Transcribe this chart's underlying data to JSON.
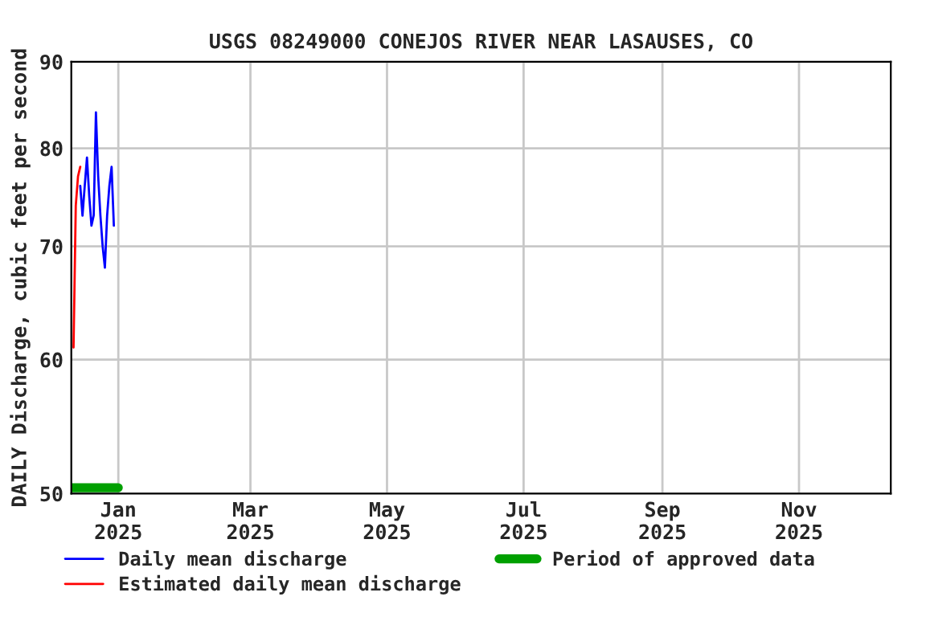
{
  "chart_data": {
    "type": "line",
    "title": "USGS 08249000 CONEJOS RIVER NEAR LASAUSES, CO",
    "ylabel": "DAILY Discharge, cubic feet per second",
    "series": [
      {
        "name": "Daily mean discharge",
        "color": "#0000ff",
        "x": [
          "2024-12-15",
          "2024-12-16",
          "2024-12-17",
          "2024-12-18",
          "2024-12-19",
          "2024-12-20",
          "2024-12-21",
          "2024-12-22",
          "2024-12-23",
          "2024-12-24",
          "2024-12-25",
          "2024-12-26",
          "2024-12-27",
          "2024-12-28",
          "2024-12-29",
          "2024-12-30"
        ],
        "values": [
          76,
          73,
          76,
          79,
          75,
          72,
          73,
          84,
          77,
          73,
          70,
          68,
          73,
          76,
          78,
          72
        ]
      },
      {
        "name": "Estimated daily mean discharge",
        "color": "#ff0000",
        "x": [
          "2024-12-12",
          "2024-12-13",
          "2024-12-14",
          "2024-12-15"
        ],
        "values": [
          61,
          74,
          77,
          78
        ]
      },
      {
        "name": "Period of approved data",
        "type": "step",
        "color": "#00a000",
        "x": [
          "2024-12-11",
          "2025-01-01"
        ],
        "values": [
          50.4,
          50.4
        ]
      }
    ],
    "log": "y",
    "xlim": [
      "2024-12-11",
      "2025-12-12"
    ],
    "ylim": [
      50,
      90
    ],
    "xticks": [
      {
        "value": "2025-01-01",
        "label": "Jan\n2025"
      },
      {
        "value": "2025-03-01",
        "label": "Mar\n2025"
      },
      {
        "value": "2025-05-01",
        "label": "May\n2025"
      },
      {
        "value": "2025-07-01",
        "label": "Jul\n2025"
      },
      {
        "value": "2025-09-01",
        "label": "Sep\n2025"
      },
      {
        "value": "2025-11-01",
        "label": "Nov\n2025"
      }
    ],
    "yticks": [
      50,
      60,
      70,
      80,
      90
    ],
    "grid": true,
    "legend": "bottom"
  }
}
